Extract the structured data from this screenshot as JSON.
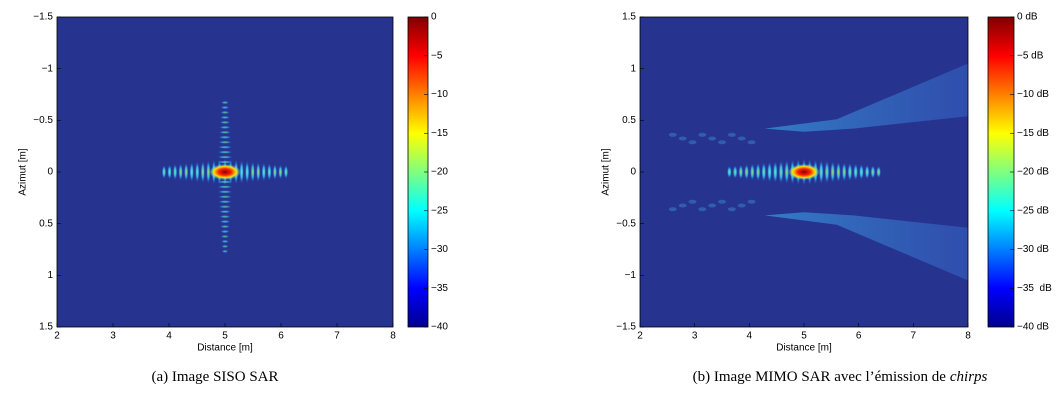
{
  "chart_data": [
    {
      "type": "heatmap",
      "caption": "(a) Image SISO SAR",
      "xlabel": "Distance [m]",
      "ylabel": "Azimut [m]",
      "xlim": [
        2,
        8
      ],
      "xticks": [
        2,
        3,
        4,
        5,
        6,
        7,
        8
      ],
      "ylim": [
        1.5,
        -1.5
      ],
      "yticks": [
        {
          "value": -1.5,
          "label": "−1.5"
        },
        {
          "value": -1,
          "label": "−1"
        },
        {
          "value": -0.5,
          "label": "−0.5"
        },
        0,
        0.5,
        1,
        1.5
      ],
      "colormap": "jet",
      "clim": [
        -40,
        0
      ],
      "cticks": [
        0,
        {
          "value": -5,
          "label": "−5"
        },
        {
          "value": -10,
          "label": "−10"
        },
        {
          "value": -15,
          "label": "−15"
        },
        {
          "value": -20,
          "label": "−20"
        },
        {
          "value": -25,
          "label": "−25"
        },
        {
          "value": -30,
          "label": "−30"
        },
        {
          "value": -35,
          "label": "−35"
        },
        {
          "value": -40,
          "label": "−40"
        }
      ]
    },
    {
      "type": "heatmap",
      "caption": "(b) Image MIMO SAR avec l’émission de",
      "caption_italic": "chirps",
      "xlabel": "Distance [m]",
      "ylabel": "Azimut [m]",
      "xlim": [
        2,
        8
      ],
      "xticks": [
        2,
        3,
        4,
        5,
        6,
        7,
        8
      ],
      "ylim": [
        -1.5,
        1.5
      ],
      "yticks": [
        1.5,
        1,
        0.5,
        0,
        {
          "value": -0.5,
          "label": "−0.5"
        },
        {
          "value": -1,
          "label": "−1"
        },
        {
          "value": -1.5,
          "label": "−1.5"
        }
      ],
      "colormap": "jet",
      "clim": [
        -40,
        0
      ],
      "cticks": [
        {
          "value": 0,
          "label": "0 dB"
        },
        {
          "value": -5,
          "label": "−5 dB"
        },
        {
          "value": -10,
          "label": "−10 dB"
        },
        {
          "value": -15,
          "label": "−15 dB"
        },
        {
          "value": -20,
          "label": "−20 dB"
        },
        {
          "value": -25,
          "label": "−25 dB"
        },
        {
          "value": -30,
          "label": "−30 dB"
        },
        {
          "value": -35,
          "label": "−35  dB"
        },
        {
          "value": -40,
          "label": "−40 dB"
        }
      ]
    }
  ]
}
